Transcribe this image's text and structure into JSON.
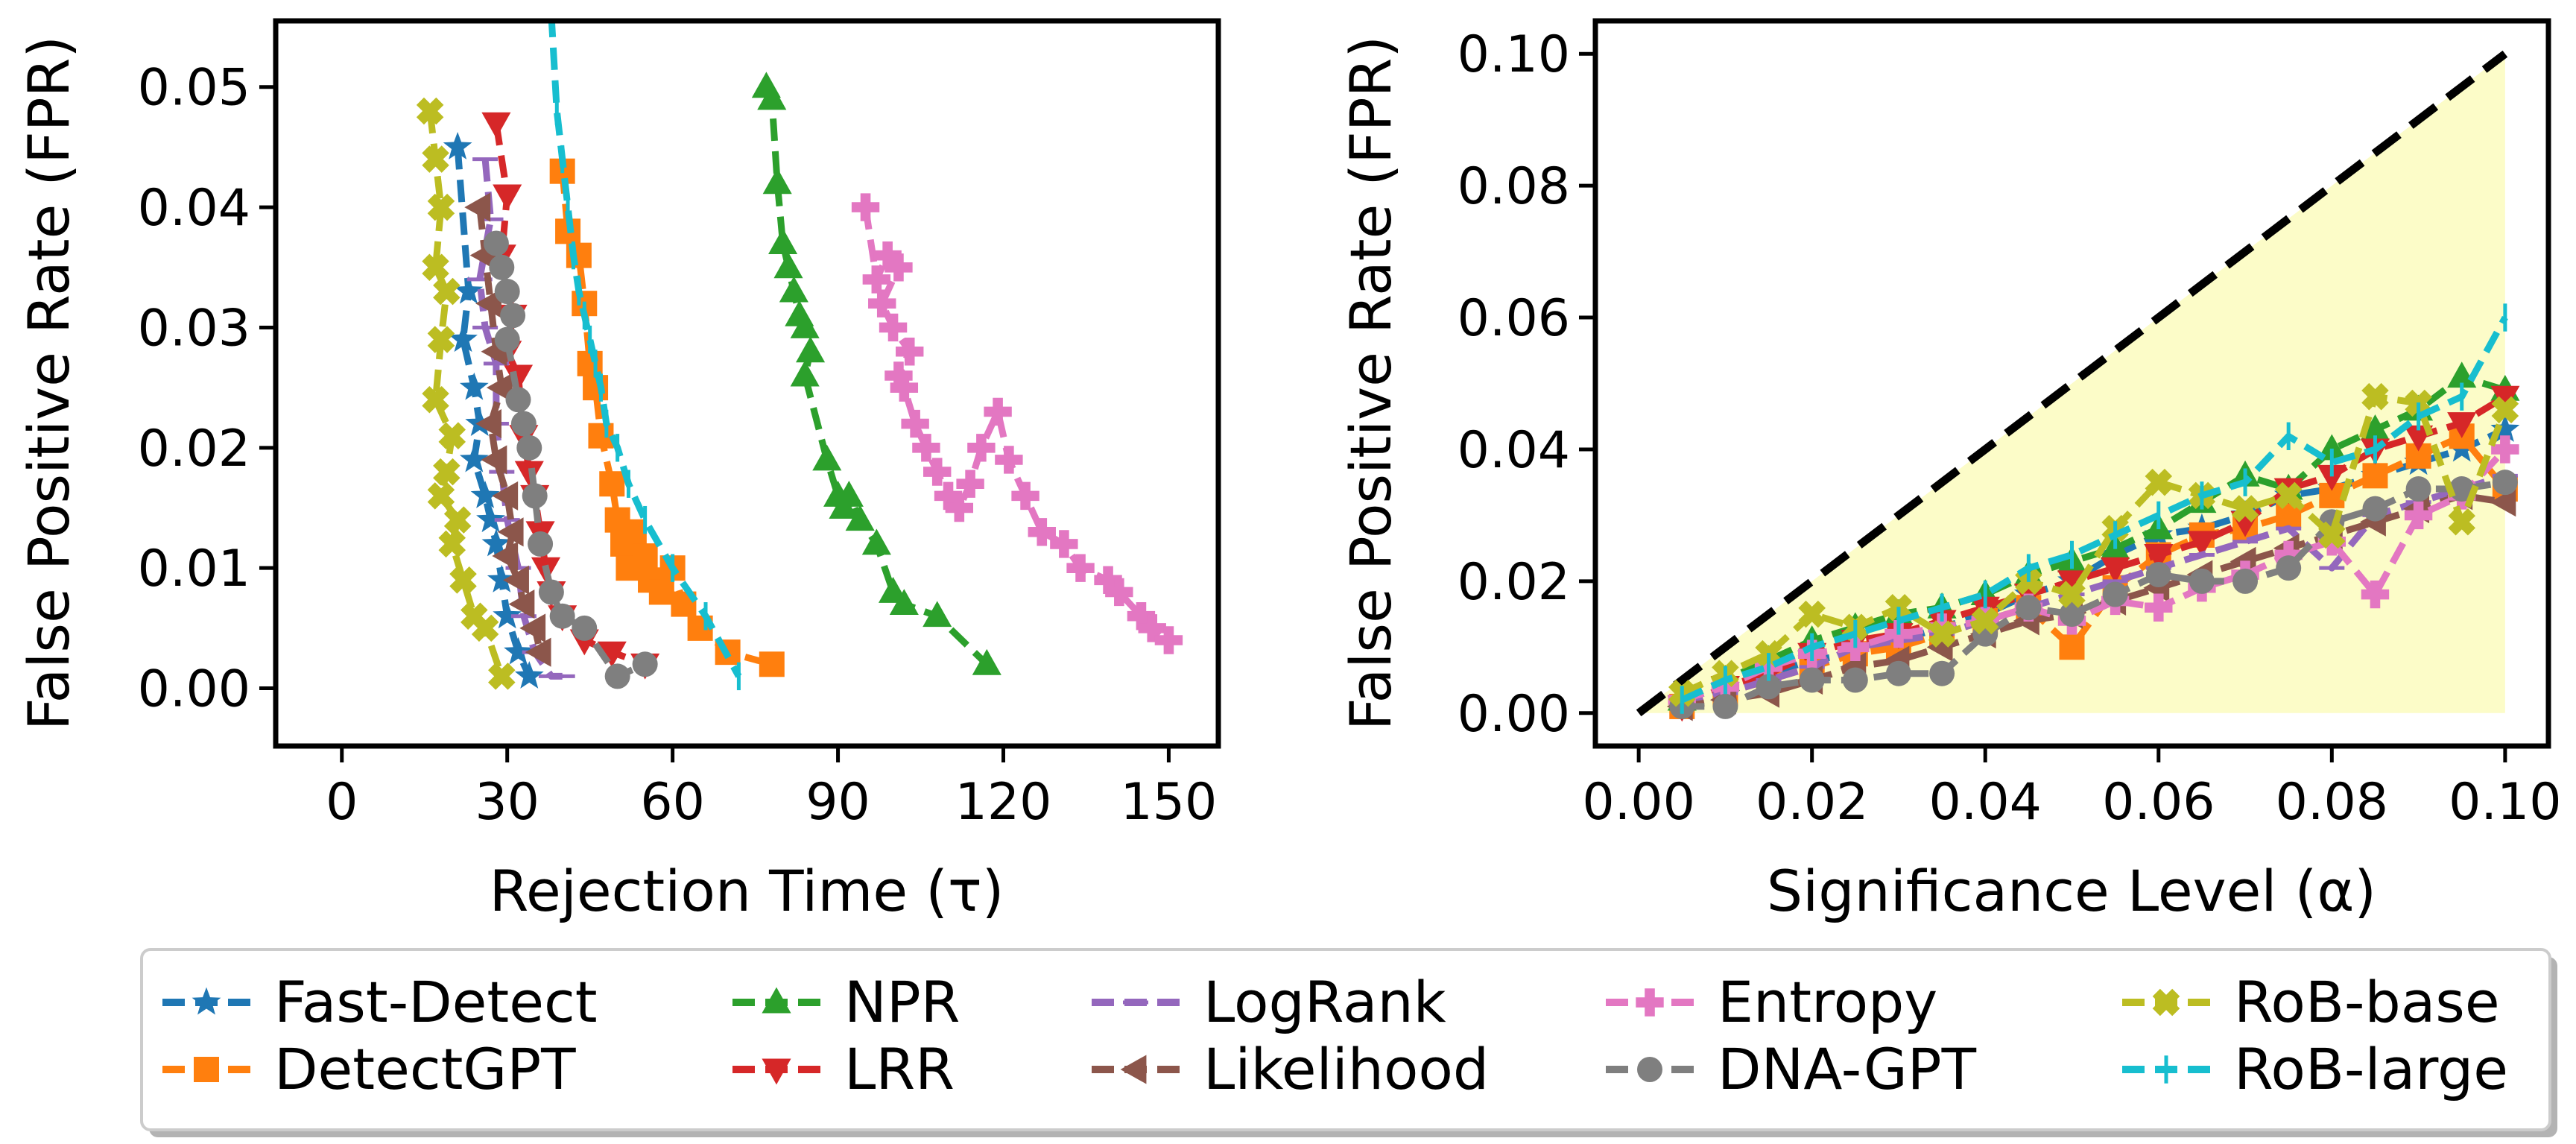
{
  "chart_data": [
    {
      "type": "line",
      "xlabel": "Rejection Time (τ)",
      "ylabel": "False Positive Rate (FPR)",
      "xlim": [
        -12,
        159
      ],
      "ylim": [
        -0.0048,
        0.0555
      ],
      "xticks": [
        0,
        30,
        60,
        90,
        120,
        150
      ],
      "yticks": [
        0.0,
        0.01,
        0.02,
        0.03,
        0.04,
        0.05
      ],
      "xtick_labels": [
        "0",
        "30",
        "60",
        "90",
        "120",
        "150"
      ],
      "ytick_labels": [
        "0.00",
        "0.01",
        "0.02",
        "0.03",
        "0.04",
        "0.05"
      ],
      "series": [
        {
          "name": "Fast-Detect",
          "color": "#1f77b4",
          "marker": "star",
          "x": [
            21,
            23,
            22,
            24,
            25,
            24,
            26,
            27,
            28,
            29,
            30,
            32,
            34
          ],
          "y": [
            0.045,
            0.033,
            0.029,
            0.025,
            0.022,
            0.019,
            0.016,
            0.014,
            0.012,
            0.009,
            0.006,
            0.003,
            0.001
          ]
        },
        {
          "name": "DetectGPT",
          "color": "#ff7f0e",
          "marker": "square",
          "x": [
            40,
            41,
            43,
            44,
            45,
            46,
            47,
            49,
            50,
            51,
            52,
            53,
            55,
            56,
            58,
            60,
            62,
            65,
            70,
            78
          ],
          "y": [
            0.043,
            0.038,
            0.036,
            0.032,
            0.027,
            0.025,
            0.021,
            0.017,
            0.014,
            0.012,
            0.01,
            0.013,
            0.011,
            0.009,
            0.008,
            0.01,
            0.007,
            0.005,
            0.003,
            0.002
          ]
        },
        {
          "name": "NPR",
          "color": "#2ca02c",
          "marker": "triangle-up",
          "x": [
            77,
            78,
            79,
            80,
            81,
            82,
            83,
            84,
            85,
            84,
            88,
            90,
            91,
            92,
            94,
            97,
            100,
            102,
            108,
            117
          ],
          "y": [
            0.05,
            0.049,
            0.042,
            0.037,
            0.035,
            0.033,
            0.031,
            0.03,
            0.028,
            0.026,
            0.019,
            0.016,
            0.015,
            0.016,
            0.014,
            0.012,
            0.008,
            0.007,
            0.006,
            0.002
          ]
        },
        {
          "name": "LRR",
          "color": "#d62728",
          "marker": "triangle-down",
          "x": [
            28,
            30,
            29,
            31,
            30,
            32,
            33,
            34,
            35,
            36,
            37,
            38,
            40,
            44,
            49,
            55
          ],
          "y": [
            0.047,
            0.041,
            0.036,
            0.031,
            0.028,
            0.026,
            0.021,
            0.018,
            0.016,
            0.013,
            0.01,
            0.008,
            0.006,
            0.004,
            0.003,
            0.002
          ]
        },
        {
          "name": "LogRank",
          "color": "#9467bd",
          "marker": "hline",
          "x": [
            26,
            27,
            25,
            26,
            28,
            28,
            29,
            30,
            32,
            33,
            35,
            38,
            40
          ],
          "y": [
            0.044,
            0.039,
            0.034,
            0.03,
            0.027,
            0.022,
            0.018,
            0.014,
            0.01,
            0.006,
            0.003,
            0.001,
            0.001
          ]
        },
        {
          "name": "Likelihood",
          "color": "#8c564b",
          "marker": "triangle-left",
          "x": [
            25,
            26,
            27,
            28,
            29,
            27,
            28,
            30,
            31,
            30,
            32,
            33,
            35,
            36
          ],
          "y": [
            0.04,
            0.036,
            0.032,
            0.028,
            0.025,
            0.022,
            0.019,
            0.016,
            0.013,
            0.011,
            0.009,
            0.007,
            0.005,
            0.003
          ]
        },
        {
          "name": "Entropy",
          "color": "#e377c2",
          "marker": "plus",
          "x": [
            95,
            97,
            99,
            101,
            98,
            100,
            103,
            101,
            102,
            104,
            106,
            108,
            110,
            112,
            114,
            116,
            119,
            121,
            124,
            127,
            131,
            134,
            139,
            141,
            145,
            147,
            150
          ],
          "y": [
            0.04,
            0.034,
            0.036,
            0.035,
            0.032,
            0.03,
            0.028,
            0.026,
            0.025,
            0.022,
            0.02,
            0.018,
            0.016,
            0.015,
            0.017,
            0.02,
            0.023,
            0.019,
            0.016,
            0.013,
            0.012,
            0.01,
            0.009,
            0.008,
            0.006,
            0.005,
            0.004
          ]
        },
        {
          "name": "DNA-GPT",
          "color": "#7f7f7f",
          "marker": "circle",
          "x": [
            28,
            29,
            30,
            31,
            30,
            32,
            33,
            34,
            35,
            36,
            38,
            40,
            44,
            50,
            55
          ],
          "y": [
            0.037,
            0.035,
            0.033,
            0.031,
            0.029,
            0.024,
            0.022,
            0.02,
            0.016,
            0.012,
            0.008,
            0.006,
            0.005,
            0.001,
            0.002
          ]
        },
        {
          "name": "RoB-base",
          "color": "#bcbd22",
          "marker": "x-thick",
          "x": [
            16,
            17,
            18,
            17,
            19,
            18,
            17,
            20,
            19,
            18,
            21,
            20,
            22,
            24,
            26,
            29
          ],
          "y": [
            0.048,
            0.044,
            0.04,
            0.035,
            0.033,
            0.029,
            0.024,
            0.021,
            0.018,
            0.016,
            0.014,
            0.012,
            0.009,
            0.006,
            0.005,
            0.001
          ]
        },
        {
          "name": "RoB-large",
          "color": "#17becf",
          "marker": "vline",
          "x": [
            38,
            39,
            40,
            41,
            42,
            43,
            44,
            45,
            46,
            47,
            48,
            50,
            52,
            55,
            60,
            66,
            72
          ],
          "y": [
            0.056,
            0.048,
            0.044,
            0.04,
            0.036,
            0.033,
            0.031,
            0.029,
            0.027,
            0.025,
            0.022,
            0.02,
            0.017,
            0.014,
            0.01,
            0.006,
            0.001
          ]
        }
      ]
    },
    {
      "type": "line",
      "xlabel": "Significance Level (α)",
      "ylabel": "False Positive Rate (FPR)",
      "xlim": [
        -0.005,
        0.105
      ],
      "ylim": [
        -0.005,
        0.105
      ],
      "xticks": [
        0.0,
        0.02,
        0.04,
        0.06,
        0.08,
        0.1
      ],
      "yticks": [
        0.0,
        0.02,
        0.04,
        0.06,
        0.08,
        0.1
      ],
      "xtick_labels": [
        "0.00",
        "0.02",
        "0.04",
        "0.06",
        "0.08",
        "0.10"
      ],
      "ytick_labels": [
        "0.00",
        "0.02",
        "0.04",
        "0.06",
        "0.08",
        "0.10"
      ],
      "reference": {
        "x": [
          0.0,
          0.1
        ],
        "y": [
          0.0,
          0.1
        ],
        "style": "dashed",
        "color": "#000000"
      },
      "shaded_region_color": "#fcfcc8",
      "alpha": [
        0.005,
        0.01,
        0.015,
        0.02,
        0.025,
        0.03,
        0.035,
        0.04,
        0.045,
        0.05,
        0.055,
        0.06,
        0.065,
        0.07,
        0.075,
        0.08,
        0.085,
        0.09,
        0.095,
        0.1
      ],
      "series": [
        {
          "name": "Fast-Detect",
          "color": "#1f77b4",
          "marker": "star",
          "y": [
            0.002,
            0.004,
            0.006,
            0.008,
            0.009,
            0.011,
            0.013,
            0.015,
            0.018,
            0.02,
            0.024,
            0.027,
            0.028,
            0.03,
            0.033,
            0.034,
            0.036,
            0.038,
            0.04,
            0.043
          ]
        },
        {
          "name": "DetectGPT",
          "color": "#ff7f0e",
          "marker": "square",
          "y": [
            0.001,
            0.003,
            0.005,
            0.007,
            0.009,
            0.01,
            0.012,
            0.014,
            0.016,
            0.01,
            0.019,
            0.024,
            0.027,
            0.028,
            0.03,
            0.033,
            0.036,
            0.039,
            0.042,
            0.034
          ]
        },
        {
          "name": "NPR",
          "color": "#2ca02c",
          "marker": "triangle-up",
          "y": [
            0.002,
            0.005,
            0.008,
            0.011,
            0.013,
            0.015,
            0.016,
            0.018,
            0.021,
            0.023,
            0.025,
            0.028,
            0.032,
            0.036,
            0.034,
            0.04,
            0.043,
            0.046,
            0.051,
            0.049
          ]
        },
        {
          "name": "LRR",
          "color": "#d62728",
          "marker": "triangle-down",
          "y": [
            0.001,
            0.004,
            0.006,
            0.009,
            0.011,
            0.012,
            0.014,
            0.016,
            0.018,
            0.02,
            0.022,
            0.024,
            0.026,
            0.029,
            0.034,
            0.036,
            0.04,
            0.042,
            0.044,
            0.048
          ]
        },
        {
          "name": "LogRank",
          "color": "#9467bd",
          "marker": "hline",
          "y": [
            0.001,
            0.003,
            0.005,
            0.007,
            0.01,
            0.011,
            0.012,
            0.014,
            0.016,
            0.018,
            0.02,
            0.022,
            0.024,
            0.026,
            0.028,
            0.022,
            0.03,
            0.032,
            0.034,
            0.036
          ]
        },
        {
          "name": "Likelihood",
          "color": "#8c564b",
          "marker": "triangle-left",
          "y": [
            0.001,
            0.002,
            0.003,
            0.005,
            0.007,
            0.008,
            0.01,
            0.012,
            0.014,
            0.015,
            0.017,
            0.019,
            0.021,
            0.023,
            0.025,
            0.027,
            0.029,
            0.031,
            0.033,
            0.032
          ]
        },
        {
          "name": "Entropy",
          "color": "#e377c2",
          "marker": "plus",
          "y": [
            0.002,
            0.004,
            0.007,
            0.009,
            0.01,
            0.012,
            0.013,
            0.014,
            0.016,
            0.014,
            0.017,
            0.016,
            0.019,
            0.021,
            0.024,
            0.026,
            0.018,
            0.03,
            0.033,
            0.04
          ]
        },
        {
          "name": "DNA-GPT",
          "color": "#7f7f7f",
          "marker": "circle",
          "y": [
            0.001,
            0.001,
            0.004,
            0.005,
            0.005,
            0.006,
            0.006,
            0.012,
            0.016,
            0.015,
            0.018,
            0.021,
            0.02,
            0.02,
            0.022,
            0.029,
            0.031,
            0.034,
            0.034,
            0.035
          ]
        },
        {
          "name": "RoB-base",
          "color": "#bcbd22",
          "marker": "x-thick",
          "y": [
            0.003,
            0.006,
            0.009,
            0.015,
            0.013,
            0.016,
            0.012,
            0.014,
            0.02,
            0.018,
            0.028,
            0.035,
            0.033,
            0.031,
            0.033,
            0.027,
            0.048,
            0.047,
            0.029,
            0.046
          ]
        },
        {
          "name": "RoB-large",
          "color": "#17becf",
          "marker": "vline",
          "y": [
            0.002,
            0.005,
            0.007,
            0.01,
            0.012,
            0.014,
            0.016,
            0.018,
            0.022,
            0.024,
            0.027,
            0.03,
            0.033,
            0.035,
            0.042,
            0.038,
            0.04,
            0.045,
            0.048,
            0.06
          ]
        }
      ]
    }
  ],
  "legend": [
    "Fast-Detect",
    "DetectGPT",
    "NPR",
    "LRR",
    "LogRank",
    "Likelihood",
    "Entropy",
    "DNA-GPT",
    "RoB-base",
    "RoB-large"
  ]
}
